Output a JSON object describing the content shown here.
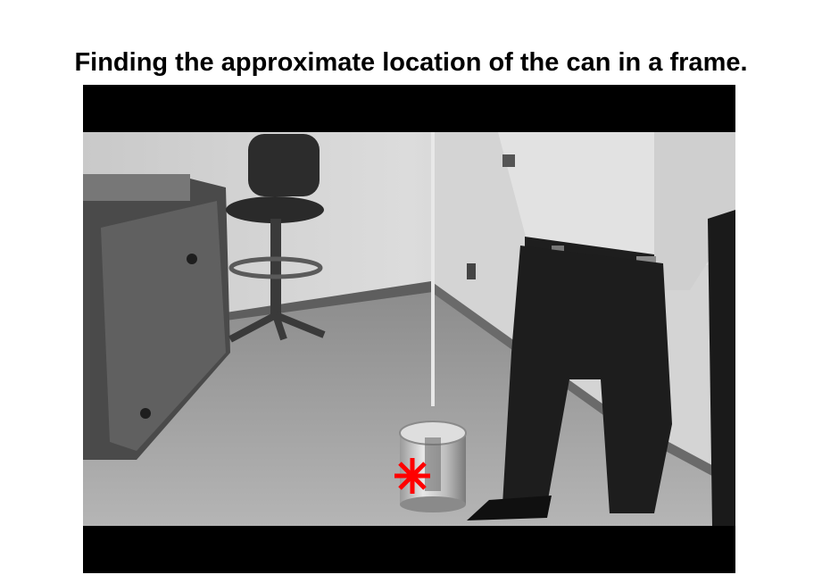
{
  "figure": {
    "title": "Finding the approximate location of the can in a frame."
  },
  "video_frame": {
    "colors": {
      "letterbox": "#000000",
      "marker": "#ff0000"
    },
    "marker_icon": "asterisk-marker"
  }
}
